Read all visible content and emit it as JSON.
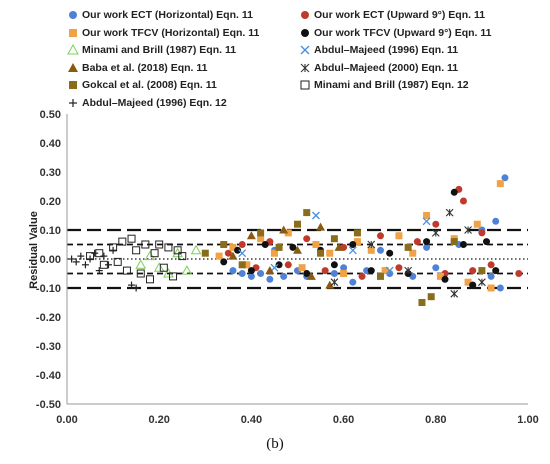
{
  "panel_label": "(b)",
  "chart_data": {
    "type": "scatter",
    "xlim": [
      0.0,
      1.0
    ],
    "ylim": [
      -0.5,
      0.5
    ],
    "x_ticks": [
      "0.00",
      "0.20",
      "0.40",
      "0.60",
      "0.80",
      "1.00"
    ],
    "y_ticks": [
      "0.50",
      "0.40",
      "0.30",
      "0.20",
      "0.10",
      "0.00",
      "-0.10",
      "-0.20",
      "-0.30",
      "-0.40",
      "-0.50"
    ],
    "ylabel": "Residual Value",
    "grid": false,
    "legend_position": "top",
    "reference_lines": [
      {
        "y": 0.1,
        "style": "long-dash"
      },
      {
        "y": 0.05,
        "style": "short-dash"
      },
      {
        "y": 0.0,
        "style": "dotted"
      },
      {
        "y": -0.05,
        "style": "short-dash"
      },
      {
        "y": -0.1,
        "style": "long-dash"
      }
    ],
    "series": [
      {
        "name": "Our work ECT (Horizontal) Eqn. 11",
        "marker": "circle",
        "color": "#4f81d6",
        "points": [
          [
            0.36,
            -0.04
          ],
          [
            0.38,
            -0.05
          ],
          [
            0.4,
            -0.06
          ],
          [
            0.42,
            -0.05
          ],
          [
            0.44,
            -0.07
          ],
          [
            0.45,
            0.03
          ],
          [
            0.47,
            -0.06
          ],
          [
            0.5,
            -0.04
          ],
          [
            0.52,
            -0.06
          ],
          [
            0.55,
            0.02
          ],
          [
            0.58,
            -0.05
          ],
          [
            0.6,
            -0.03
          ],
          [
            0.62,
            -0.08
          ],
          [
            0.65,
            -0.04
          ],
          [
            0.68,
            0.03
          ],
          [
            0.7,
            -0.05
          ],
          [
            0.72,
            0.08
          ],
          [
            0.75,
            -0.06
          ],
          [
            0.78,
            0.04
          ],
          [
            0.8,
            -0.03
          ],
          [
            0.82,
            -0.07
          ],
          [
            0.85,
            0.05
          ],
          [
            0.88,
            -0.09
          ],
          [
            0.9,
            0.1
          ],
          [
            0.92,
            -0.06
          ],
          [
            0.93,
            0.13
          ],
          [
            0.95,
            0.28
          ],
          [
            0.94,
            -0.1
          ]
        ]
      },
      {
        "name": "Our work ECT (Upward 9°) Eqn. 11",
        "marker": "circle",
        "color": "#c0392b",
        "points": [
          [
            0.35,
            0.02
          ],
          [
            0.38,
            0.05
          ],
          [
            0.41,
            -0.03
          ],
          [
            0.44,
            0.06
          ],
          [
            0.48,
            -0.02
          ],
          [
            0.52,
            0.07
          ],
          [
            0.56,
            -0.04
          ],
          [
            0.6,
            0.04
          ],
          [
            0.64,
            -0.06
          ],
          [
            0.68,
            0.08
          ],
          [
            0.72,
            -0.03
          ],
          [
            0.76,
            0.06
          ],
          [
            0.8,
            0.12
          ],
          [
            0.82,
            -0.05
          ],
          [
            0.85,
            0.24
          ],
          [
            0.86,
            0.2
          ],
          [
            0.88,
            -0.04
          ],
          [
            0.9,
            0.09
          ],
          [
            0.92,
            -0.02
          ],
          [
            0.98,
            -0.05
          ]
        ]
      },
      {
        "name": "Our work TFCV (Horizontal) Eqn. 11",
        "marker": "square",
        "color": "#f0a346",
        "points": [
          [
            0.33,
            0.01
          ],
          [
            0.36,
            0.04
          ],
          [
            0.39,
            -0.02
          ],
          [
            0.42,
            0.07
          ],
          [
            0.45,
            0.02
          ],
          [
            0.48,
            0.09
          ],
          [
            0.51,
            -0.03
          ],
          [
            0.54,
            0.05
          ],
          [
            0.57,
            0.02
          ],
          [
            0.6,
            -0.05
          ],
          [
            0.63,
            0.06
          ],
          [
            0.66,
            0.03
          ],
          [
            0.69,
            -0.04
          ],
          [
            0.72,
            0.08
          ],
          [
            0.75,
            0.02
          ],
          [
            0.78,
            0.15
          ],
          [
            0.81,
            -0.06
          ],
          [
            0.84,
            0.07
          ],
          [
            0.87,
            -0.08
          ],
          [
            0.89,
            0.12
          ],
          [
            0.92,
            -0.1
          ],
          [
            0.94,
            0.26
          ]
        ]
      },
      {
        "name": "Our work TFCV (Upward 9°) Eqn. 11",
        "marker": "circle",
        "color": "#111111",
        "points": [
          [
            0.34,
            -0.01
          ],
          [
            0.37,
            0.03
          ],
          [
            0.4,
            -0.04
          ],
          [
            0.43,
            0.05
          ],
          [
            0.46,
            -0.02
          ],
          [
            0.49,
            0.04
          ],
          [
            0.52,
            -0.05
          ],
          [
            0.55,
            0.03
          ],
          [
            0.58,
            -0.02
          ],
          [
            0.62,
            0.05
          ],
          [
            0.66,
            -0.04
          ],
          [
            0.7,
            0.02
          ],
          [
            0.74,
            -0.05
          ],
          [
            0.78,
            0.06
          ],
          [
            0.82,
            -0.07
          ],
          [
            0.84,
            0.23
          ],
          [
            0.86,
            0.05
          ],
          [
            0.88,
            -0.09
          ],
          [
            0.91,
            0.06
          ],
          [
            0.93,
            -0.04
          ]
        ]
      },
      {
        "name": "Minami and Brill (1987) Eqn. 11",
        "marker": "triangle-open",
        "color": "#7dcf5a",
        "points": [
          [
            0.16,
            -0.02
          ],
          [
            0.18,
            0.01
          ],
          [
            0.2,
            -0.03
          ],
          [
            0.22,
            -0.05
          ],
          [
            0.24,
            0.02
          ],
          [
            0.26,
            -0.04
          ],
          [
            0.28,
            0.03
          ]
        ]
      },
      {
        "name": "Abdul–Majeed (1996) Eqn. 11",
        "marker": "x",
        "color": "#4a90e2",
        "points": [
          [
            0.38,
            0.02
          ],
          [
            0.45,
            -0.03
          ],
          [
            0.54,
            0.15
          ],
          [
            0.62,
            0.03
          ],
          [
            0.7,
            -0.04
          ],
          [
            0.78,
            0.13
          ]
        ]
      },
      {
        "name": "Baba et al. (2018) Eqn. 11",
        "marker": "triangle",
        "color": "#8b5a12",
        "points": [
          [
            0.36,
            0.01
          ],
          [
            0.4,
            0.08
          ],
          [
            0.44,
            -0.04
          ],
          [
            0.47,
            0.1
          ],
          [
            0.5,
            0.03
          ],
          [
            0.53,
            -0.06
          ],
          [
            0.55,
            0.11
          ],
          [
            0.57,
            -0.09
          ],
          [
            0.59,
            0.04
          ]
        ]
      },
      {
        "name": "Abdul–Majeed (2000) Eqn. 11",
        "marker": "asterisk",
        "color": "#333333",
        "points": [
          [
            0.58,
            -0.08
          ],
          [
            0.66,
            0.05
          ],
          [
            0.74,
            -0.04
          ],
          [
            0.8,
            0.09
          ],
          [
            0.83,
            0.16
          ],
          [
            0.84,
            -0.12
          ],
          [
            0.87,
            0.1
          ],
          [
            0.9,
            -0.08
          ]
        ]
      },
      {
        "name": "Gokcal et al. (2008) Eqn. 11",
        "marker": "square",
        "color": "#8a6d1a",
        "points": [
          [
            0.3,
            0.02
          ],
          [
            0.34,
            0.05
          ],
          [
            0.38,
            -0.02
          ],
          [
            0.42,
            0.09
          ],
          [
            0.46,
            0.04
          ],
          [
            0.5,
            0.12
          ],
          [
            0.52,
            0.16
          ],
          [
            0.55,
            0.02
          ],
          [
            0.58,
            0.07
          ],
          [
            0.63,
            0.09
          ],
          [
            0.68,
            -0.06
          ],
          [
            0.74,
            0.04
          ],
          [
            0.77,
            -0.15
          ],
          [
            0.79,
            -0.13
          ],
          [
            0.84,
            0.06
          ],
          [
            0.9,
            -0.04
          ]
        ]
      },
      {
        "name": "Minami and Brill (1987) Eqn. 12",
        "marker": "square-open",
        "color": "#222222",
        "points": [
          [
            0.05,
            0.01
          ],
          [
            0.07,
            0.02
          ],
          [
            0.08,
            -0.02
          ],
          [
            0.1,
            0.04
          ],
          [
            0.11,
            -0.01
          ],
          [
            0.12,
            0.06
          ],
          [
            0.13,
            -0.04
          ],
          [
            0.14,
            0.07
          ],
          [
            0.15,
            0.03
          ],
          [
            0.16,
            -0.05
          ],
          [
            0.17,
            0.05
          ],
          [
            0.18,
            -0.07
          ],
          [
            0.19,
            0.02
          ],
          [
            0.2,
            0.05
          ],
          [
            0.21,
            -0.03
          ],
          [
            0.22,
            0.04
          ],
          [
            0.23,
            -0.06
          ],
          [
            0.24,
            0.03
          ],
          [
            0.25,
            0.01
          ]
        ]
      },
      {
        "name": "Abdul–Majeed (1996) Eqn. 12",
        "marker": "plus",
        "color": "#222222",
        "points": [
          [
            0.01,
            0.0
          ],
          [
            0.02,
            -0.01
          ],
          [
            0.03,
            0.01
          ],
          [
            0.04,
            -0.02
          ],
          [
            0.05,
            0.0
          ],
          [
            0.06,
            0.02
          ],
          [
            0.07,
            -0.04
          ],
          [
            0.08,
            0.01
          ],
          [
            0.09,
            -0.02
          ],
          [
            0.1,
            0.03
          ],
          [
            0.14,
            -0.09
          ],
          [
            0.15,
            -0.1
          ]
        ]
      }
    ]
  }
}
